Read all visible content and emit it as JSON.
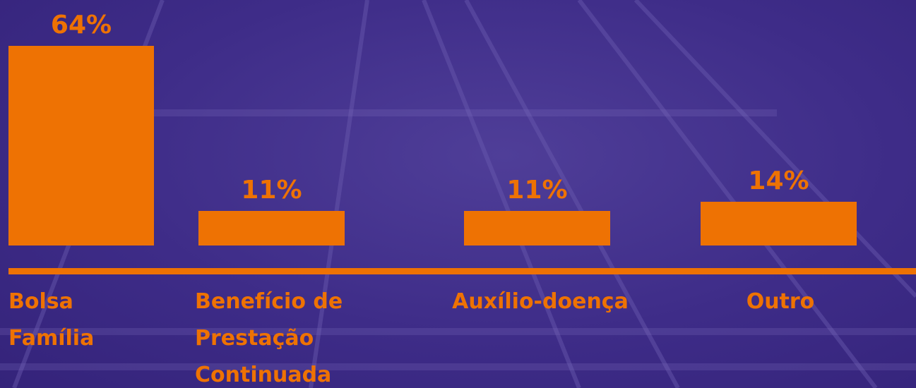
{
  "chart_data": {
    "type": "bar",
    "categories": [
      "Bolsa Família",
      "Benefício de Prestação Continuada",
      "Auxílio-doença",
      "Outro"
    ],
    "values": [
      64,
      11,
      11,
      14
    ],
    "value_labels": [
      "64%",
      "11%",
      "11%",
      "14%"
    ],
    "color": "#ee7203"
  }
}
